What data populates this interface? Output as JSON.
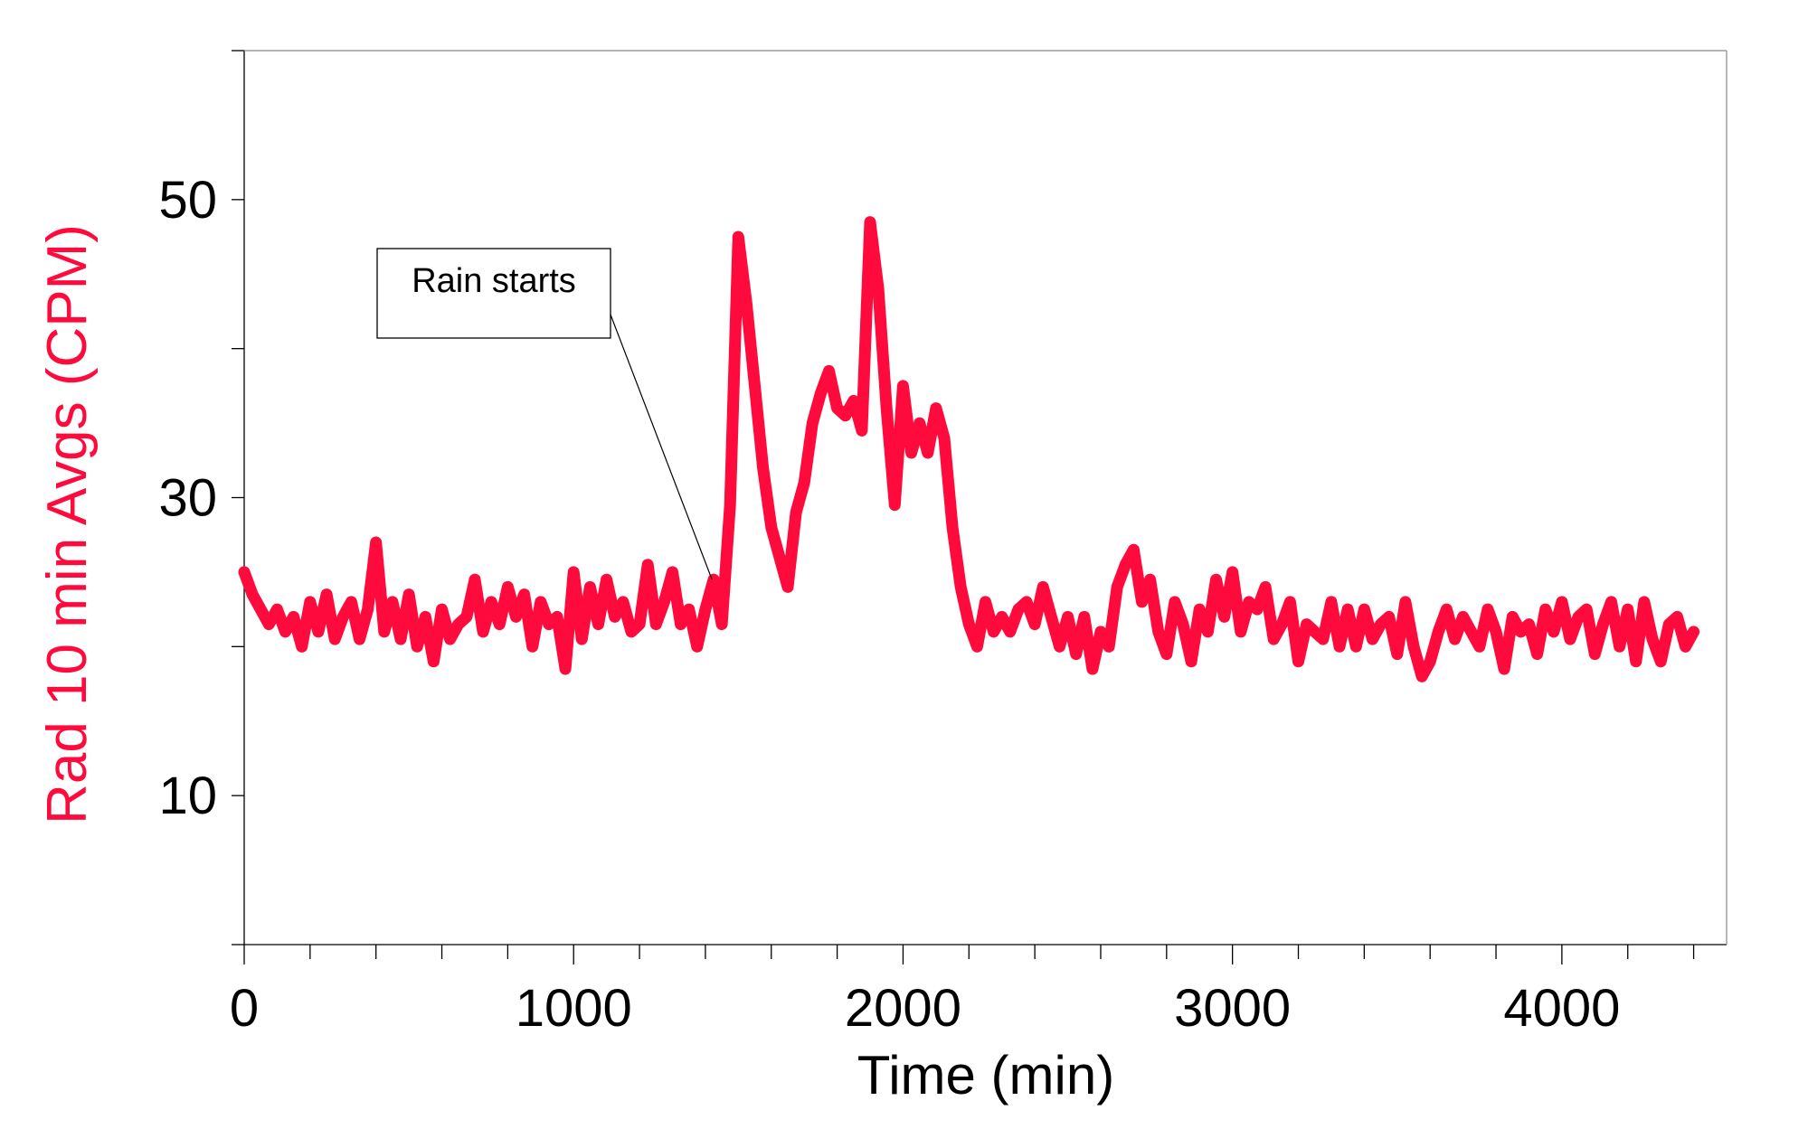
{
  "chart_data": {
    "type": "line",
    "title": "",
    "xlabel": "Time (min)",
    "ylabel": "Rad 10 min Avgs (CPM)",
    "xlim": [
      0,
      4500
    ],
    "ylim": [
      0,
      60
    ],
    "x_ticks": [
      0,
      1000,
      2000,
      3000,
      4000
    ],
    "x_tick_labels": [
      "0",
      "1000",
      "2000",
      "3000",
      "4000"
    ],
    "y_ticks": [
      10,
      30,
      50
    ],
    "y_tick_labels": [
      "10",
      "30",
      "50"
    ],
    "grid": false,
    "legend": "none",
    "colors": {
      "series": "#ff0a3c",
      "ylabel": "#ff0a3c",
      "axes": "#000000"
    },
    "annotations": [
      {
        "text": "Rain starts",
        "x": 1420,
        "y": 24.5
      }
    ],
    "series": [
      {
        "x": [
          0,
          25,
          50,
          75,
          100,
          125,
          150,
          175,
          200,
          225,
          250,
          275,
          300,
          325,
          350,
          375,
          400,
          425,
          450,
          475,
          500,
          525,
          550,
          575,
          600,
          625,
          650,
          675,
          700,
          725,
          750,
          775,
          800,
          825,
          850,
          875,
          900,
          925,
          950,
          975,
          1000,
          1025,
          1050,
          1075,
          1100,
          1125,
          1150,
          1175,
          1200,
          1225,
          1250,
          1275,
          1300,
          1325,
          1350,
          1375,
          1400,
          1425,
          1450,
          1475,
          1500,
          1525,
          1550,
          1575,
          1600,
          1625,
          1650,
          1675,
          1700,
          1725,
          1750,
          1775,
          1800,
          1825,
          1850,
          1875,
          1900,
          1925,
          1950,
          1975,
          2000,
          2025,
          2050,
          2075,
          2100,
          2125,
          2150,
          2175,
          2200,
          2225,
          2250,
          2275,
          2300,
          2325,
          2350,
          2375,
          2400,
          2425,
          2450,
          2475,
          2500,
          2525,
          2550,
          2575,
          2600,
          2625,
          2650,
          2675,
          2700,
          2725,
          2750,
          2775,
          2800,
          2825,
          2850,
          2875,
          2900,
          2925,
          2950,
          2975,
          3000,
          3025,
          3050,
          3075,
          3100,
          3125,
          3150,
          3175,
          3200,
          3225,
          3250,
          3275,
          3300,
          3325,
          3350,
          3375,
          3400,
          3425,
          3450,
          3475,
          3500,
          3525,
          3550,
          3575,
          3600,
          3625,
          3650,
          3675,
          3700,
          3725,
          3750,
          3775,
          3800,
          3825,
          3850,
          3875,
          3900,
          3925,
          3950,
          3975,
          4000,
          4025,
          4050,
          4075,
          4100,
          4125,
          4150,
          4175,
          4200,
          4225,
          4250,
          4275,
          4300,
          4325,
          4350,
          4375,
          4400
        ],
        "y": [
          25,
          23.5,
          22.5,
          21.5,
          22.5,
          21,
          22,
          20,
          23,
          21,
          23.5,
          20.5,
          22,
          23,
          20.5,
          22.5,
          27,
          21,
          23,
          20.5,
          23.5,
          20,
          22,
          19,
          22.5,
          20.5,
          21.5,
          22,
          24.5,
          21,
          23,
          21.5,
          24,
          22,
          23.5,
          20,
          23,
          21.5,
          22,
          18.5,
          25,
          20.5,
          24,
          21.5,
          24.5,
          22,
          23,
          21,
          21.5,
          25.5,
          21.5,
          23,
          25,
          21.5,
          22.5,
          20,
          22.5,
          24.5,
          21.5,
          29.5,
          47.5,
          43,
          37.5,
          32,
          28,
          26,
          24,
          29,
          31,
          35,
          37,
          38.5,
          36,
          35.5,
          36.5,
          34.5,
          48.5,
          44,
          36,
          29.5,
          37.5,
          33,
          35,
          33,
          36,
          34,
          28,
          24,
          21.5,
          20,
          23,
          21,
          22,
          21,
          22.5,
          23,
          21.5,
          24,
          22,
          20,
          22,
          19.5,
          22,
          18.5,
          21,
          20,
          24,
          25.5,
          26.5,
          23,
          24.5,
          21,
          19.5,
          23,
          21.5,
          19,
          22.5,
          21,
          24.5,
          22,
          25,
          21,
          23,
          22.5,
          24,
          20.5,
          21.5,
          23,
          19,
          21.5,
          21,
          20.5,
          23,
          20,
          22.5,
          20,
          22.5,
          20.5,
          21.5,
          22,
          19.5,
          23,
          20,
          18,
          19,
          21,
          22.5,
          20.5,
          22,
          21,
          20,
          22.5,
          21,
          18.5,
          22,
          21,
          21.5,
          19.5,
          22.5,
          21,
          23,
          20.5,
          22,
          22.5,
          19.5,
          21.5,
          23,
          20,
          22.5,
          19,
          23,
          20.5,
          19,
          21.5,
          22,
          20,
          21
        ]
      }
    ]
  }
}
